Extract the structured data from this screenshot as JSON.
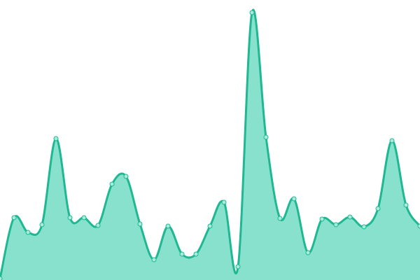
{
  "chart_data": {
    "type": "area",
    "color": "#1fb892",
    "fill": "#87e1cd",
    "point_fill": "#a8ebdc",
    "values": [
      2,
      89,
      68,
      79,
      202,
      89,
      89,
      78,
      137,
      148,
      80,
      29,
      77,
      37,
      37,
      77,
      111,
      19,
      382,
      204,
      88,
      116,
      39,
      87,
      79,
      90,
      76,
      102,
      199,
      107,
      77
    ],
    "ylim": [
      0,
      400
    ]
  }
}
